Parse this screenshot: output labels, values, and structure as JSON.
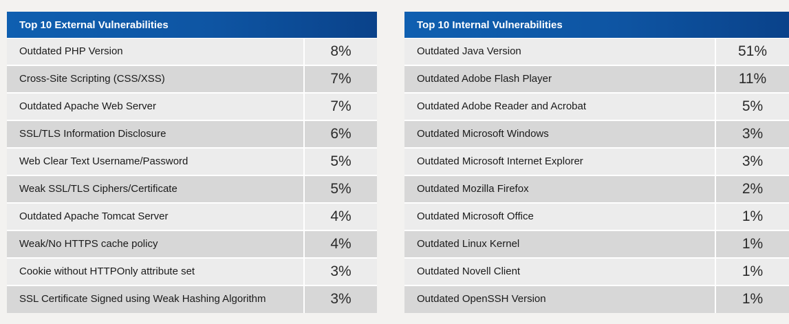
{
  "external": {
    "title": "Top 10 External Vulnerabilities",
    "rows": [
      {
        "name": "Outdated PHP Version",
        "value": "8%"
      },
      {
        "name": "Cross-Site Scripting (CSS/XSS)",
        "value": "7%"
      },
      {
        "name": "Outdated Apache Web Server",
        "value": "7%"
      },
      {
        "name": "SSL/TLS Information Disclosure",
        "value": "6%"
      },
      {
        "name": "Web Clear Text Username/Password",
        "value": "5%"
      },
      {
        "name": "Weak SSL/TLS Ciphers/Certificate",
        "value": "5%"
      },
      {
        "name": "Outdated Apache Tomcat Server",
        "value": "4%"
      },
      {
        "name": "Weak/No HTTPS cache policy",
        "value": "4%"
      },
      {
        "name": "Cookie without HTTPOnly attribute set",
        "value": "3%"
      },
      {
        "name": "SSL Certificate Signed using Weak Hashing Algorithm",
        "value": "3%"
      }
    ]
  },
  "internal": {
    "title": "Top 10 Internal Vulnerabilities",
    "rows": [
      {
        "name": "Outdated Java Version",
        "value": "51%"
      },
      {
        "name": "Outdated Adobe Flash Player",
        "value": "11%"
      },
      {
        "name": "Outdated Adobe Reader and Acrobat",
        "value": "5%"
      },
      {
        "name": "Outdated Microsoft Windows",
        "value": "3%"
      },
      {
        "name": "Outdated Microsoft Internet Explorer",
        "value": "3%"
      },
      {
        "name": "Outdated Mozilla Firefox",
        "value": "2%"
      },
      {
        "name": "Outdated Microsoft Office",
        "value": "1%"
      },
      {
        "name": "Outdated Linux Kernel",
        "value": "1%"
      },
      {
        "name": "Outdated Novell Client",
        "value": "1%"
      },
      {
        "name": "Outdated OpenSSH Version",
        "value": "1%"
      }
    ]
  },
  "colors": {
    "header_start": "#0f5fb0",
    "header_end": "#0a428a",
    "row_light": "#ececec",
    "row_dark": "#d7d7d7"
  }
}
